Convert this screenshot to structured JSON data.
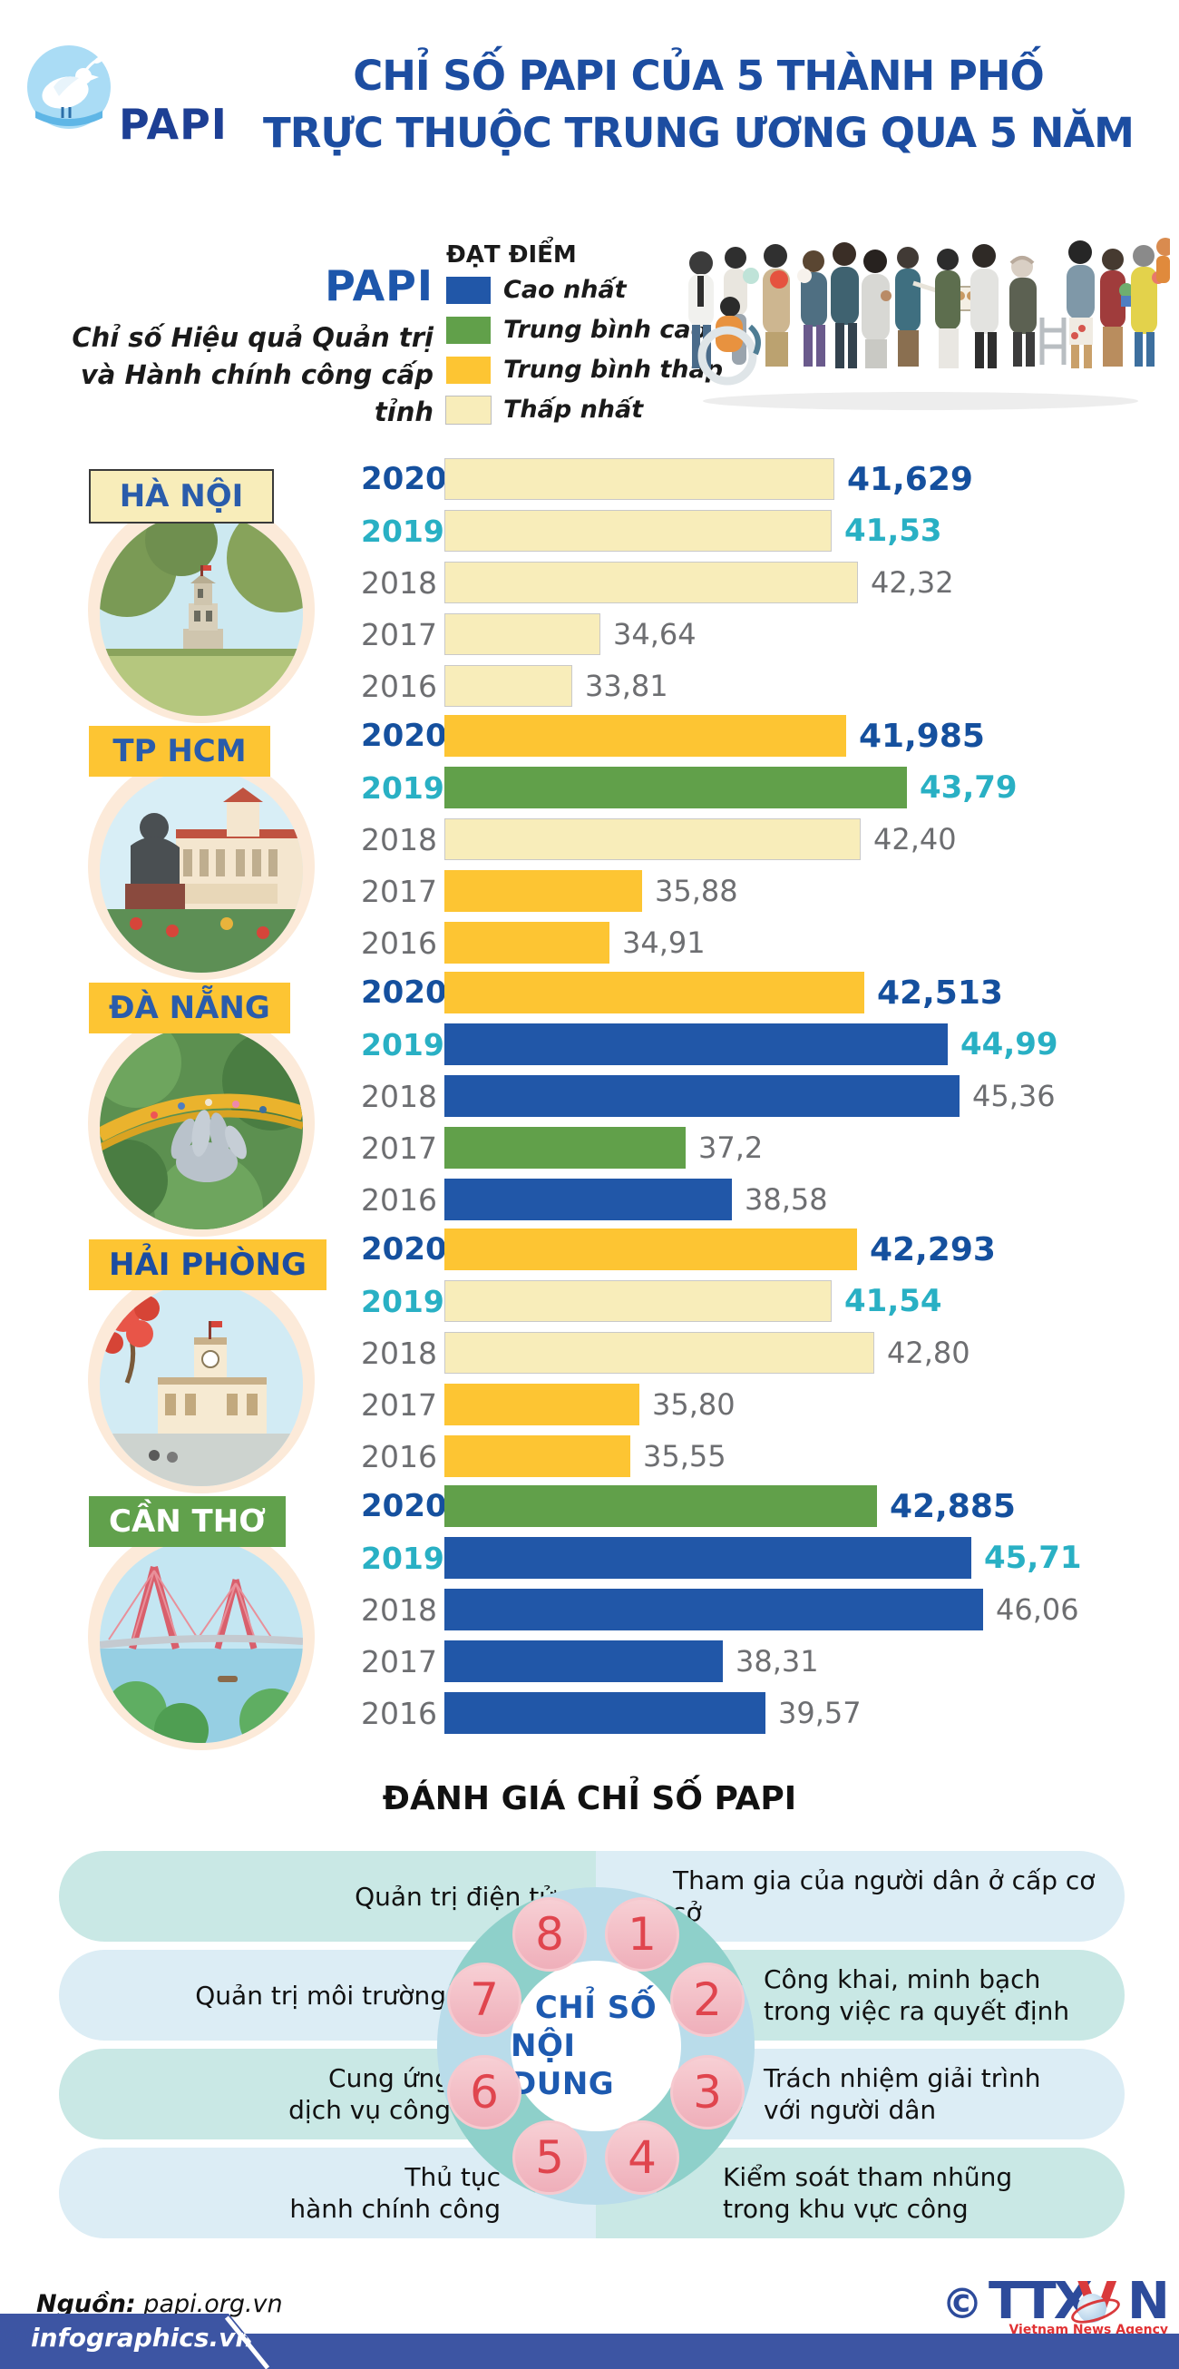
{
  "header": {
    "logo_text": "PAPI",
    "title_line1": "CHỈ SỐ PAPI CỦA 5 THÀNH PHỐ",
    "title_line2": "TRỰC THUỘC TRUNG ƯƠNG QUA 5 NĂM"
  },
  "intro": {
    "papi_label": "PAPI",
    "desc_line1": "Chỉ số Hiệu quả Quản trị",
    "desc_line2": "và Hành chính công cấp tỉnh",
    "legend_title": "ĐẠT ĐIỂM",
    "legend": [
      {
        "label": "Cao nhất",
        "category": "highest"
      },
      {
        "label": "Trung bình cao",
        "category": "mid_high"
      },
      {
        "label": "Trung bình thấp",
        "category": "mid_low"
      },
      {
        "label": "Thấp nhất",
        "category": "lowest"
      }
    ]
  },
  "palette": {
    "highest": "#2157a8",
    "mid_high": "#61a04a",
    "mid_low": "#fdc533",
    "lowest": "#f8edba"
  },
  "chart_data": {
    "type": "bar",
    "title": "Chỉ số PAPI của 5 thành phố trực thuộc trung ương qua 5 năm",
    "categories": [
      "2020",
      "2019",
      "2018",
      "2017",
      "2016"
    ],
    "series": [
      {
        "name": "Hà Nội",
        "values": [
          41.629,
          41.53,
          42.32,
          34.64,
          33.81
        ],
        "levels": [
          "lowest",
          "lowest",
          "lowest",
          "lowest",
          "lowest"
        ]
      },
      {
        "name": "TP HCM",
        "values": [
          41.985,
          43.79,
          42.4,
          35.88,
          34.91
        ],
        "levels": [
          "mid_low",
          "mid_high",
          "lowest",
          "mid_low",
          "mid_low"
        ]
      },
      {
        "name": "Đà Nẵng",
        "values": [
          42.513,
          44.99,
          45.36,
          37.2,
          38.58
        ],
        "levels": [
          "mid_low",
          "highest",
          "highest",
          "mid_high",
          "highest"
        ]
      },
      {
        "name": "Hải Phòng",
        "values": [
          42.293,
          41.54,
          42.8,
          35.8,
          35.55
        ],
        "levels": [
          "mid_low",
          "lowest",
          "lowest",
          "mid_low",
          "mid_low"
        ]
      },
      {
        "name": "Cần Thơ",
        "values": [
          42.885,
          45.71,
          46.06,
          38.31,
          39.57
        ],
        "levels": [
          "mid_high",
          "highest",
          "highest",
          "highest",
          "highest"
        ]
      }
    ],
    "legend_entries": [
      "Cao nhất",
      "Trung bình cao",
      "Trung bình thấp",
      "Thấp nhất"
    ]
  },
  "cities": [
    {
      "name": "HÀ NỘI",
      "label_bg": "#f8edba",
      "label_color": "#2a5cab",
      "label_border": "2px solid #3a3a3a",
      "bars": [
        {
          "year": "2020",
          "value": "41,629",
          "score": 41.629,
          "category": "lowest"
        },
        {
          "year": "2019",
          "value": "41,53",
          "score": 41.53,
          "category": "lowest"
        },
        {
          "year": "2018",
          "value": "42,32",
          "score": 42.32,
          "category": "lowest"
        },
        {
          "year": "2017",
          "value": "34,64",
          "score": 34.64,
          "category": "lowest"
        },
        {
          "year": "2016",
          "value": "33,81",
          "score": 33.81,
          "category": "lowest"
        }
      ]
    },
    {
      "name": "TP HCM",
      "label_bg": "#fdc533",
      "label_color": "#2a5cab",
      "label_border": "none",
      "bars": [
        {
          "year": "2020",
          "value": "41,985",
          "score": 41.985,
          "category": "mid_low"
        },
        {
          "year": "2019",
          "value": "43,79",
          "score": 43.79,
          "category": "mid_high"
        },
        {
          "year": "2018",
          "value": "42,40",
          "score": 42.4,
          "category": "lowest"
        },
        {
          "year": "2017",
          "value": "35,88",
          "score": 35.88,
          "category": "mid_low"
        },
        {
          "year": "2016",
          "value": "34,91",
          "score": 34.91,
          "category": "mid_low"
        }
      ]
    },
    {
      "name": "ĐÀ NẴNG",
      "label_bg": "#fdc533",
      "label_color": "#2a5cab",
      "label_border": "none",
      "bars": [
        {
          "year": "2020",
          "value": "42,513",
          "score": 42.513,
          "category": "mid_low"
        },
        {
          "year": "2019",
          "value": "44,99",
          "score": 44.99,
          "category": "highest"
        },
        {
          "year": "2018",
          "value": "45,36",
          "score": 45.36,
          "category": "highest"
        },
        {
          "year": "2017",
          "value": "37,2",
          "score": 37.2,
          "category": "mid_high"
        },
        {
          "year": "2016",
          "value": "38,58",
          "score": 38.58,
          "category": "highest"
        }
      ]
    },
    {
      "name": "HẢI PHÒNG",
      "label_bg": "#fdc533",
      "label_color": "#1c4da1",
      "label_border": "none",
      "bars": [
        {
          "year": "2020",
          "value": "42,293",
          "score": 42.293,
          "category": "mid_low"
        },
        {
          "year": "2019",
          "value": "41,54",
          "score": 41.54,
          "category": "lowest"
        },
        {
          "year": "2018",
          "value": "42,80",
          "score": 42.8,
          "category": "lowest"
        },
        {
          "year": "2017",
          "value": "35,80",
          "score": 35.8,
          "category": "mid_low"
        },
        {
          "year": "2016",
          "value": "35,55",
          "score": 35.55,
          "category": "mid_low"
        }
      ]
    },
    {
      "name": "CẦN THƠ",
      "label_bg": "#61a14c",
      "label_color": "#ffffff",
      "label_border": "none",
      "bars": [
        {
          "year": "2020",
          "value": "42,885",
          "score": 42.885,
          "category": "mid_high"
        },
        {
          "year": "2019",
          "value": "45,71",
          "score": 45.71,
          "category": "highest"
        },
        {
          "year": "2018",
          "value": "46,06",
          "score": 46.06,
          "category": "highest"
        },
        {
          "year": "2017",
          "value": "38,31",
          "score": 38.31,
          "category": "highest"
        },
        {
          "year": "2016",
          "value": "39,57",
          "score": 39.57,
          "category": "highest"
        }
      ]
    }
  ],
  "assessment": {
    "title": "ĐÁNH GIÁ CHỈ SỐ PAPI",
    "center_line1": "CHỈ SỐ",
    "center_line2": "NỘI DUNG",
    "items": [
      {
        "num": "1",
        "text": "Tham gia của người dân ở cấp cơ sở"
      },
      {
        "num": "2",
        "text": "Công khai, minh bạch\ntrong việc ra quyết định"
      },
      {
        "num": "3",
        "text": "Trách nhiệm giải trình\nvới người dân"
      },
      {
        "num": "4",
        "text": "Kiểm soát tham nhũng\ntrong khu vực công"
      },
      {
        "num": "5",
        "text": "Thủ tục\nhành chính công"
      },
      {
        "num": "6",
        "text": "Cung ứng\ndịch vụ công"
      },
      {
        "num": "7",
        "text": "Quản trị môi trường"
      },
      {
        "num": "8",
        "text": "Quản trị điện tử"
      }
    ]
  },
  "footer": {
    "source_label": "Nguồn:",
    "source_value": " papi.org.vn",
    "brand": "infographics.vn",
    "copyright": "©",
    "agency_t1": "TTX",
    "agency_v": "V",
    "agency_t2": "N",
    "agency_caption": "Vietnam News Agency"
  }
}
